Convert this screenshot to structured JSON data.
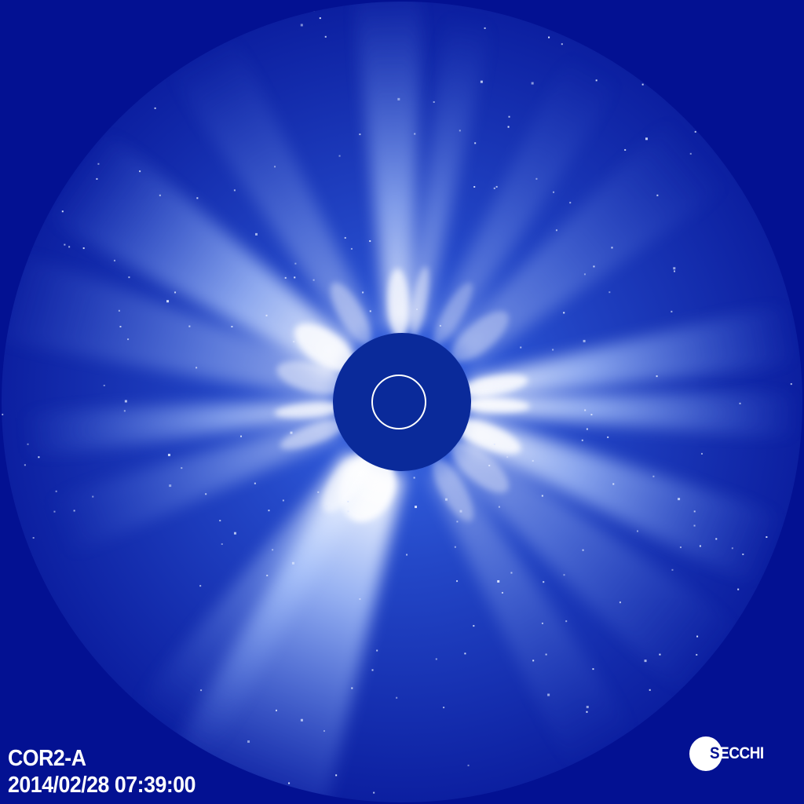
{
  "image": {
    "instrument_label": "COR2-A",
    "timestamp": "2014/02/28 07:39:00",
    "logo_text": "SECCHI",
    "colors": {
      "background": "#031192",
      "corona": "#2a52d8",
      "streamer": "#ffffff",
      "occulter": "#0a2a9a",
      "solar_limb": "#ffffff"
    }
  }
}
